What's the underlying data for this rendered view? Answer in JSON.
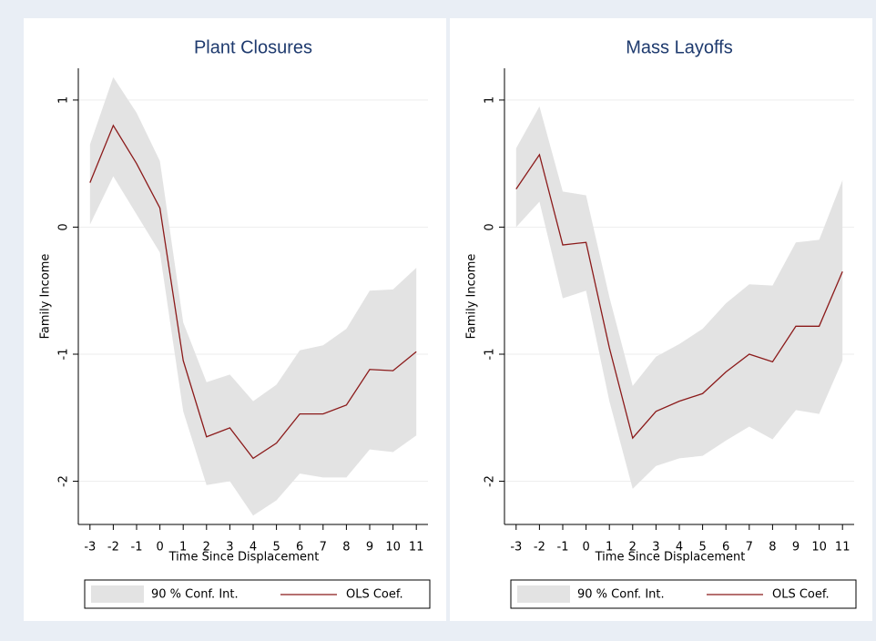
{
  "chart_data": [
    {
      "type": "line",
      "title": "Plant Closures",
      "x_label": "Time Since Displacement",
      "y_label": "Family Income",
      "x": [
        -3,
        -2,
        -1,
        0,
        1,
        2,
        3,
        4,
        5,
        6,
        7,
        8,
        9,
        10,
        11
      ],
      "xlim": [
        -3.5,
        11.5
      ],
      "xticks": [
        -3,
        -2,
        -1,
        0,
        1,
        2,
        3,
        4,
        5,
        6,
        7,
        8,
        9,
        10,
        11
      ],
      "ylim": [
        -2.34,
        1.25
      ],
      "yticks": [
        -2,
        -1,
        0,
        1
      ],
      "grid": true,
      "band": {
        "name": "90 % Conf. Int.",
        "color": "#e3e3e3",
        "upper": [
          0.65,
          1.18,
          0.9,
          0.52,
          -0.75,
          -1.22,
          -1.16,
          -1.37,
          -1.24,
          -0.97,
          -0.93,
          -0.8,
          -0.5,
          -0.49,
          -0.32
        ],
        "lower": [
          0.02,
          0.4,
          0.1,
          -0.2,
          -1.45,
          -2.03,
          -2.0,
          -2.27,
          -2.15,
          -1.94,
          -1.97,
          -1.97,
          -1.75,
          -1.77,
          -1.64
        ]
      },
      "series": [
        {
          "name": "OLS Coef.",
          "color": "#8b1a1a",
          "values": [
            0.35,
            0.8,
            0.5,
            0.15,
            -1.05,
            -1.65,
            -1.58,
            -1.82,
            -1.7,
            -1.47,
            -1.47,
            -1.4,
            -1.12,
            -1.13,
            -0.98
          ]
        }
      ]
    },
    {
      "type": "line",
      "title": "Mass Layoffs",
      "x_label": "Time Since Displacement",
      "y_label": "Family Income",
      "x": [
        -3,
        -2,
        -1,
        0,
        1,
        2,
        3,
        4,
        5,
        6,
        7,
        8,
        9,
        10,
        11
      ],
      "xlim": [
        -3.5,
        11.5
      ],
      "xticks": [
        -3,
        -2,
        -1,
        0,
        1,
        2,
        3,
        4,
        5,
        6,
        7,
        8,
        9,
        10,
        11
      ],
      "ylim": [
        -2.34,
        1.25
      ],
      "yticks": [
        -2,
        -1,
        0,
        1
      ],
      "grid": true,
      "band": {
        "name": "90 % Conf. Int.",
        "color": "#e3e3e3",
        "upper": [
          0.62,
          0.95,
          0.28,
          0.25,
          -0.55,
          -1.25,
          -1.02,
          -0.92,
          -0.8,
          -0.6,
          -0.45,
          -0.46,
          -0.12,
          -0.1,
          0.37
        ],
        "lower": [
          0.0,
          0.2,
          -0.56,
          -0.5,
          -1.37,
          -2.06,
          -1.88,
          -1.82,
          -1.8,
          -1.68,
          -1.57,
          -1.67,
          -1.44,
          -1.47,
          -1.05
        ]
      },
      "series": [
        {
          "name": "OLS Coef.",
          "color": "#8b1a1a",
          "values": [
            0.3,
            0.57,
            -0.14,
            -0.12,
            -0.95,
            -1.66,
            -1.45,
            -1.37,
            -1.31,
            -1.14,
            -1.0,
            -1.06,
            -0.78,
            -0.78,
            -0.35
          ]
        }
      ]
    }
  ]
}
